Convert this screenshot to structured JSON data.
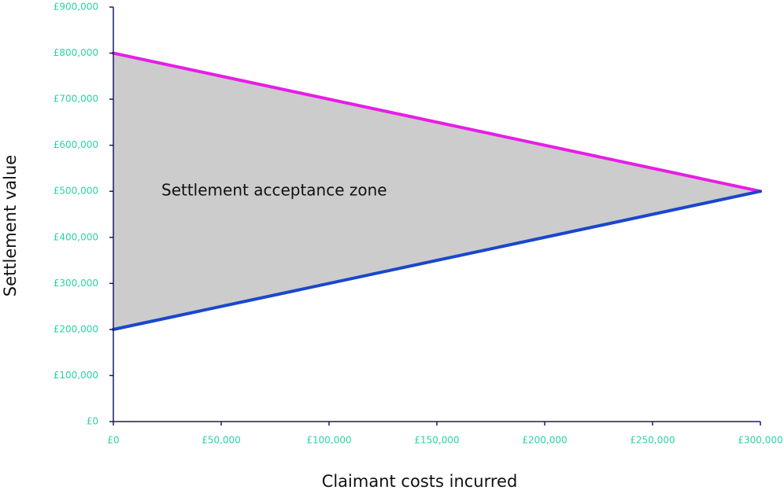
{
  "chart_data": {
    "type": "line",
    "x_label": "Claimant costs incurred",
    "y_label": "Settlement value",
    "annotation": "Settlement acceptance zone",
    "x": [
      0,
      300000
    ],
    "series": [
      {
        "color": "#e61ee6",
        "values": [
          800000,
          500000
        ]
      },
      {
        "color": "#1a47cc",
        "values": [
          200000,
          500000
        ]
      }
    ],
    "fill_between": true,
    "fill_color": "#cccccc",
    "xlim": [
      0,
      300000
    ],
    "ylim": [
      0,
      900000
    ],
    "xticks": [
      {
        "value": 0,
        "label": "£0"
      },
      {
        "value": 50000,
        "label": "£50,000"
      },
      {
        "value": 100000,
        "label": "£100,000"
      },
      {
        "value": 150000,
        "label": "£150,000"
      },
      {
        "value": 200000,
        "label": "£200,000"
      },
      {
        "value": 250000,
        "label": "£250,000"
      },
      {
        "value": 300000,
        "label": "£300,000"
      }
    ],
    "yticks": [
      {
        "value": 0,
        "label": "£0"
      },
      {
        "value": 100000,
        "label": "£100,000"
      },
      {
        "value": 200000,
        "label": "£200,000"
      },
      {
        "value": 300000,
        "label": "£300,000"
      },
      {
        "value": 400000,
        "label": "£400,000"
      },
      {
        "value": 500000,
        "label": "£500,000"
      },
      {
        "value": 600000,
        "label": "£600,000"
      },
      {
        "value": 700000,
        "label": "£700,000"
      },
      {
        "value": 800000,
        "label": "£800,000"
      },
      {
        "value": 900000,
        "label": "£900,000"
      }
    ],
    "grid": false
  }
}
